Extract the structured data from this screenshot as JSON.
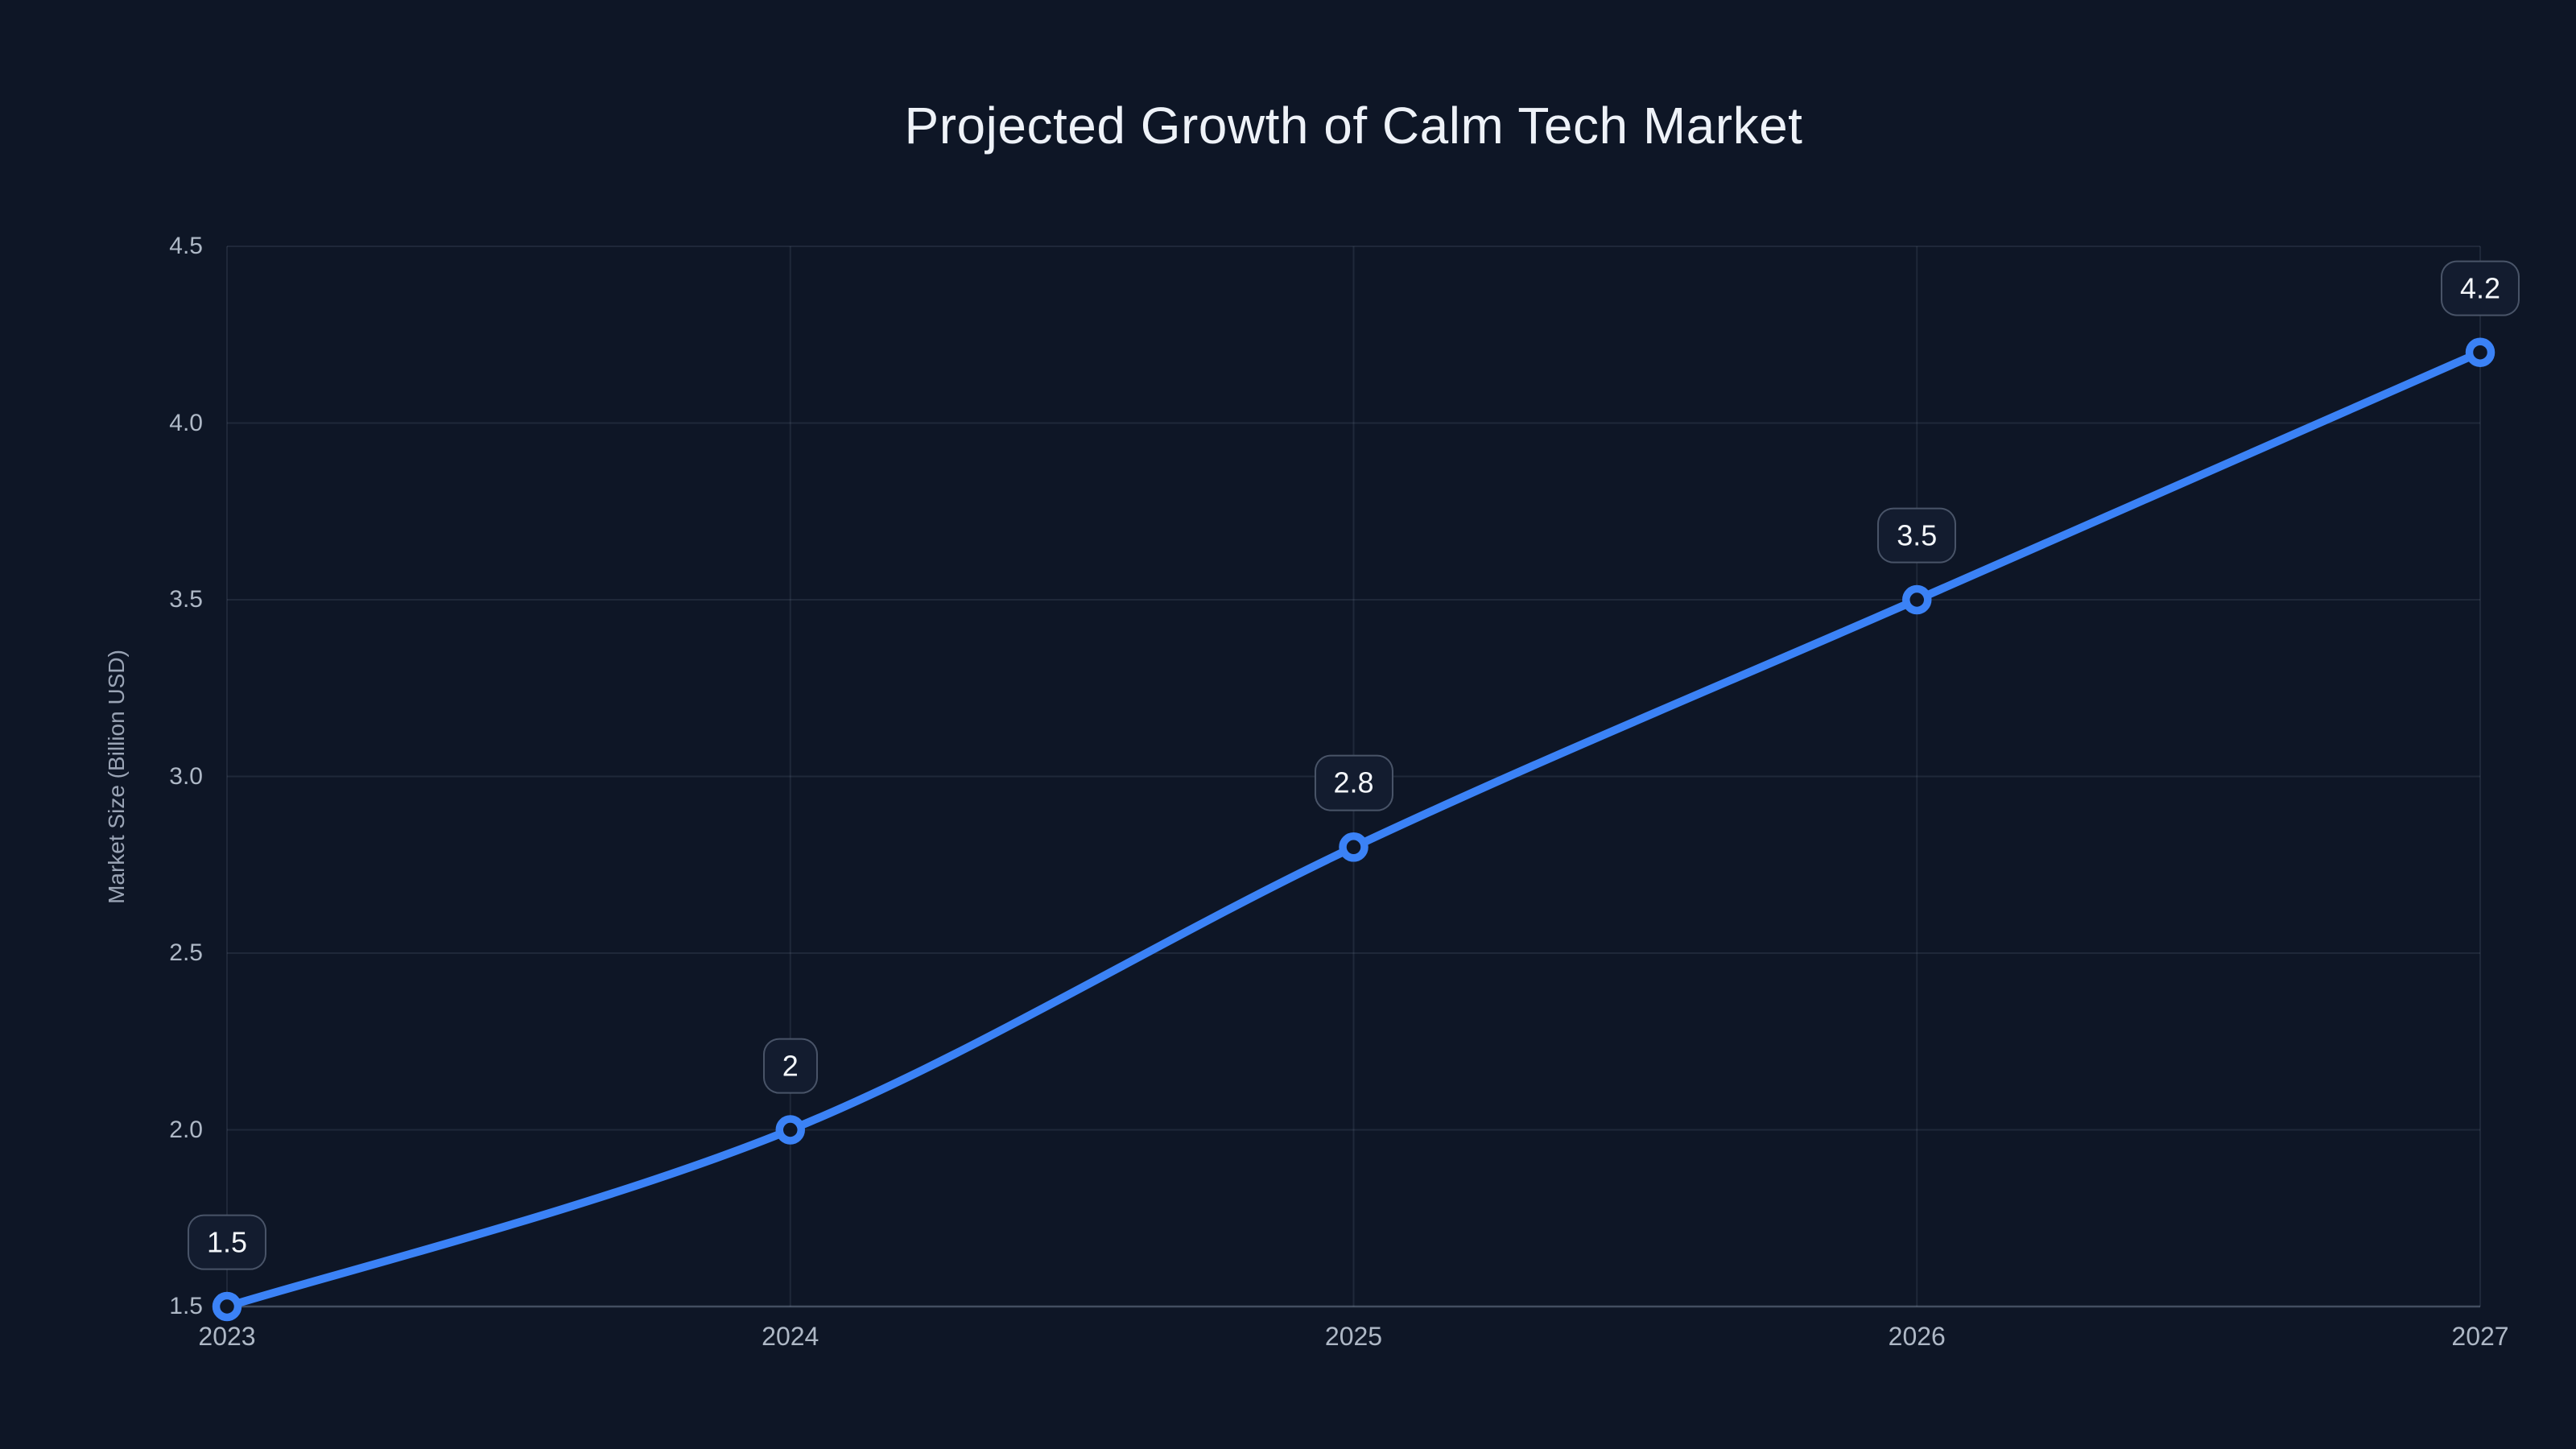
{
  "page": {
    "background": "#0e1626"
  },
  "chart_data": {
    "type": "line",
    "title": "Projected Growth of Calm Tech Market",
    "xlabel": "",
    "ylabel": "Market Size (Billion USD)",
    "categories": [
      "2023",
      "2024",
      "2025",
      "2026",
      "2027"
    ],
    "series": [
      {
        "name": "Market Size (Billion USD)",
        "values": [
          1.5,
          2,
          2.8,
          3.5,
          4.2
        ]
      }
    ],
    "point_labels": [
      "1.5",
      "2",
      "2.8",
      "3.5",
      "4.2"
    ],
    "ylim": [
      1.5,
      4.5
    ],
    "yticks": [
      1.5,
      2.0,
      2.5,
      3.0,
      3.5,
      4.0,
      4.5
    ],
    "ytick_labels": [
      "1.5",
      "2.0",
      "2.5",
      "3.0",
      "3.5",
      "4.0",
      "4.5"
    ],
    "grid": true,
    "legend": "none",
    "marker_style": "open-circle",
    "theme": {
      "background": "#0e1626",
      "line_color": "#3b82f6",
      "marker_fill": "#0e1626",
      "grid_color": "rgba(148,163,184,0.13)",
      "axis_color": "rgba(148,163,184,0.40)",
      "tick_text_color": "#aeb8c6",
      "axis_title_color": "#9aa4b5",
      "title_color": "#eef2f8",
      "badge_bg": "#131c2f",
      "badge_border": "rgba(148,163,184,0.42)",
      "badge_text_color": "#f4f7fb"
    }
  }
}
